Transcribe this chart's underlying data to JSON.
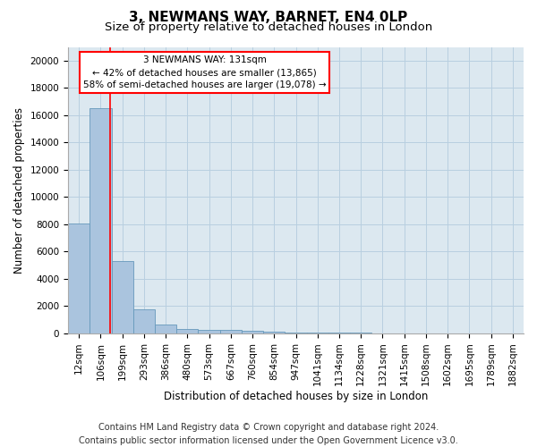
{
  "title": "3, NEWMANS WAY, BARNET, EN4 0LP",
  "subtitle": "Size of property relative to detached houses in London",
  "xlabel": "Distribution of detached houses by size in London",
  "ylabel": "Number of detached properties",
  "bar_categories": [
    "12sqm",
    "106sqm",
    "199sqm",
    "293sqm",
    "386sqm",
    "480sqm",
    "573sqm",
    "667sqm",
    "760sqm",
    "854sqm",
    "947sqm",
    "1041sqm",
    "1134sqm",
    "1228sqm",
    "1321sqm",
    "1415sqm",
    "1508sqm",
    "1602sqm",
    "1695sqm",
    "1789sqm",
    "1882sqm"
  ],
  "bar_values": [
    8050,
    16500,
    5300,
    1800,
    650,
    350,
    270,
    230,
    195,
    130,
    80,
    60,
    45,
    35,
    25,
    20,
    15,
    12,
    10,
    8,
    6
  ],
  "bar_color": "#aac4de",
  "bar_edge_color": "#6699bb",
  "red_line_x": 1.45,
  "annotation_line1": "3 NEWMANS WAY: 131sqm",
  "annotation_line2": "← 42% of detached houses are smaller (13,865)",
  "annotation_line3": "58% of semi-detached houses are larger (19,078) →",
  "ylim": [
    0,
    21000
  ],
  "yticks": [
    0,
    2000,
    4000,
    6000,
    8000,
    10000,
    12000,
    14000,
    16000,
    18000,
    20000
  ],
  "footer_line1": "Contains HM Land Registry data © Crown copyright and database right 2024.",
  "footer_line2": "Contains public sector information licensed under the Open Government Licence v3.0.",
  "bg_color": "#ffffff",
  "plot_bg_color": "#dce8f0",
  "grid_color": "#b8cfe0",
  "title_fontsize": 11,
  "subtitle_fontsize": 9.5,
  "axis_label_fontsize": 8.5,
  "tick_fontsize": 7.5,
  "annotation_fontsize": 7.5,
  "footer_fontsize": 7
}
